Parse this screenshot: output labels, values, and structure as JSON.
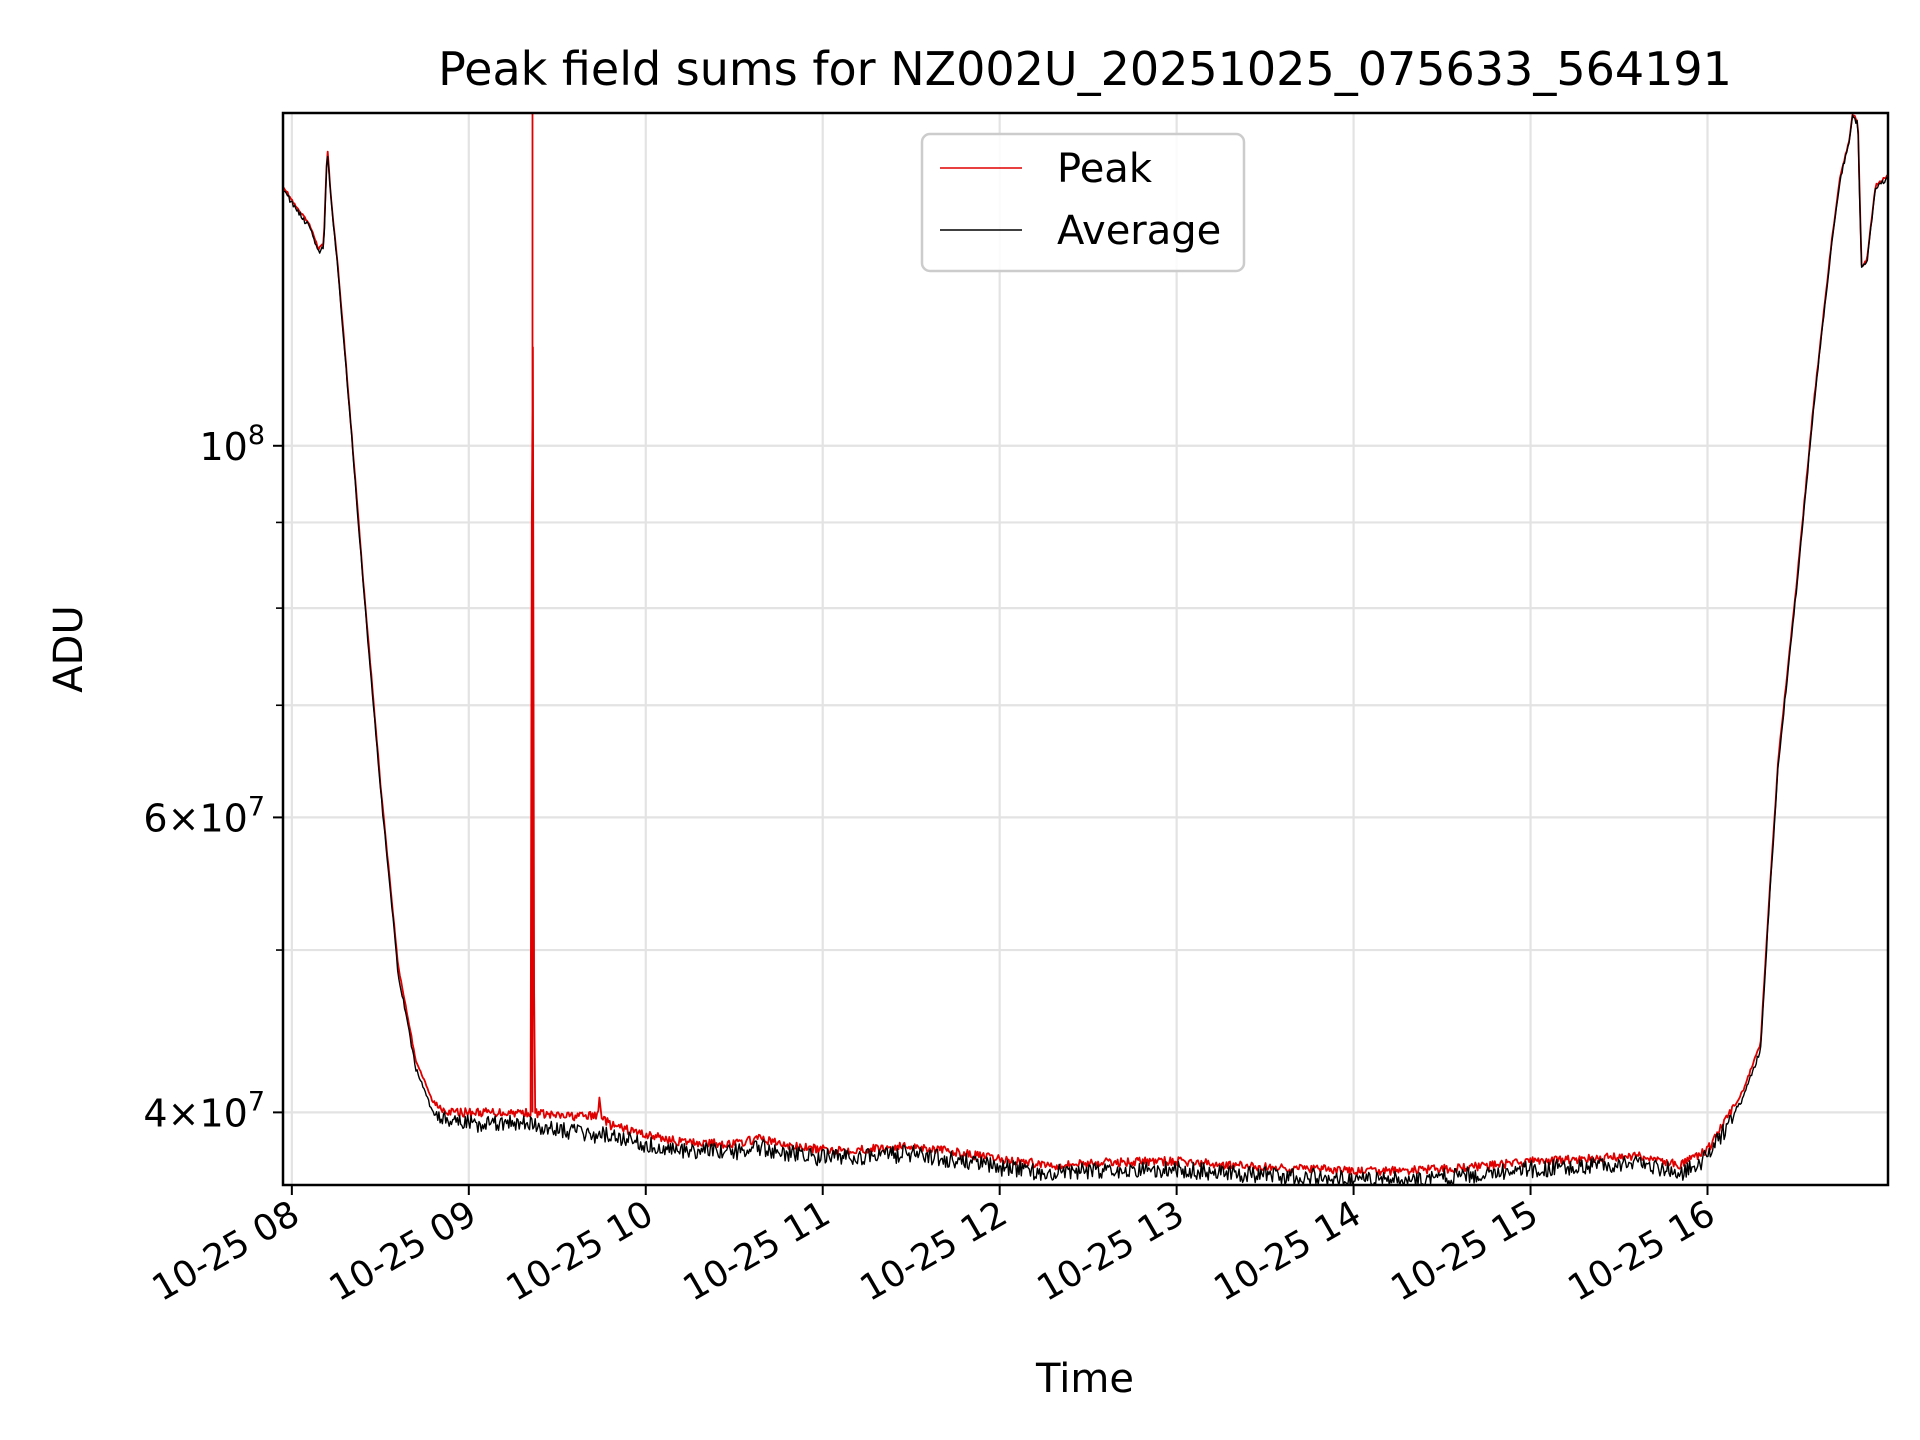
{
  "chart_data": {
    "type": "line",
    "title": "Peak field sums for NZ002U_20251025_075633_564191",
    "xlabel": "Time",
    "ylabel": "ADU",
    "y_scale": "log",
    "ylim": [
      36200000,
      158000000
    ],
    "xlim_hours": [
      7.95,
      17.02
    ],
    "grid": true,
    "legend_position": "upper center",
    "x_ticks": [
      {
        "value": 8,
        "label": "10-25 08"
      },
      {
        "value": 9,
        "label": "10-25 09"
      },
      {
        "value": 10,
        "label": "10-25 10"
      },
      {
        "value": 11,
        "label": "10-25 11"
      },
      {
        "value": 12,
        "label": "10-25 12"
      },
      {
        "value": 13,
        "label": "10-25 13"
      },
      {
        "value": 14,
        "label": "10-25 14"
      },
      {
        "value": 15,
        "label": "10-25 15"
      },
      {
        "value": 16,
        "label": "10-25 16"
      }
    ],
    "y_major_ticks": [
      {
        "value": 40000000,
        "mantissa": "4",
        "exp": "7"
      },
      {
        "value": 60000000,
        "mantissa": "6",
        "exp": "7"
      },
      {
        "value": 100000000,
        "mantissa": "",
        "exp": "8"
      }
    ],
    "y_minor_ticks": [
      50000000,
      70000000,
      80000000,
      90000000
    ],
    "series": [
      {
        "name": "Peak",
        "color": "#e00000",
        "x_hours": [
          7.95,
          8.02,
          8.09,
          8.12,
          8.15,
          8.18,
          8.2,
          8.22,
          8.26,
          8.3,
          8.35,
          8.4,
          8.5,
          8.6,
          8.7,
          8.8,
          8.9,
          9.0,
          9.2,
          9.35,
          9.36,
          9.37,
          9.5,
          9.73,
          9.74,
          9.75,
          9.8,
          10.0,
          10.2,
          10.5,
          10.65,
          10.8,
          11.0,
          11.2,
          11.5,
          11.8,
          12.0,
          12.3,
          12.5,
          12.8,
          13.0,
          13.3,
          13.5,
          13.8,
          14.0,
          14.2,
          14.5,
          14.8,
          15.0,
          15.3,
          15.6,
          15.85,
          16.0,
          16.1,
          16.2,
          16.3,
          16.35,
          16.4,
          16.5,
          16.6,
          16.7,
          16.75,
          16.8,
          16.82,
          16.85,
          16.87,
          16.9,
          16.95,
          17.02
        ],
        "y": [
          143000000,
          139000000,
          136000000,
          134000000,
          131000000,
          132000000,
          151000000,
          141000000,
          128000000,
          114000000,
          98000000,
          84000000,
          63000000,
          49000000,
          43000000,
          40500000,
          40000000,
          40000000,
          40000000,
          40000000,
          158000000,
          40000000,
          39800000,
          39800000,
          41000000,
          39800000,
          39300000,
          38800000,
          38400000,
          38300000,
          38600000,
          38200000,
          38000000,
          38000000,
          38200000,
          37800000,
          37500000,
          37200000,
          37300000,
          37400000,
          37400000,
          37200000,
          37100000,
          37000000,
          36900000,
          36900000,
          37000000,
          37200000,
          37400000,
          37500000,
          37700000,
          37200000,
          38000000,
          39500000,
          41200000,
          44000000,
          54000000,
          65000000,
          82000000,
          106000000,
          132000000,
          145000000,
          152000000,
          158000000,
          156000000,
          128000000,
          129000000,
          143000000,
          145000000
        ],
        "noise_amplitude": 0.006
      },
      {
        "name": "Average",
        "color": "#000000",
        "x_hours": [
          7.95,
          8.02,
          8.09,
          8.12,
          8.15,
          8.18,
          8.2,
          8.22,
          8.26,
          8.3,
          8.35,
          8.4,
          8.5,
          8.6,
          8.7,
          8.8,
          8.9,
          9.0,
          9.2,
          9.35,
          9.5,
          9.8,
          10.0,
          10.2,
          10.5,
          10.65,
          10.8,
          11.0,
          11.2,
          11.5,
          11.8,
          12.0,
          12.3,
          12.5,
          12.8,
          13.0,
          13.3,
          13.5,
          13.8,
          14.0,
          14.2,
          14.5,
          14.8,
          15.0,
          15.3,
          15.6,
          15.85,
          16.0,
          16.1,
          16.2,
          16.3,
          16.35,
          16.4,
          16.5,
          16.6,
          16.7,
          16.75,
          16.8,
          16.82,
          16.85,
          16.87,
          16.9,
          16.95,
          17.02
        ],
        "y": [
          142500000,
          138500000,
          135500000,
          133500000,
          130500000,
          131500000,
          150500000,
          140500000,
          127500000,
          113500000,
          97500000,
          83500000,
          62500000,
          48500000,
          42500000,
          39900000,
          39400000,
          39400000,
          39400000,
          39300000,
          39100000,
          38700000,
          38300000,
          38000000,
          37900000,
          38100000,
          37800000,
          37600000,
          37600000,
          37800000,
          37400000,
          37100000,
          36800000,
          36900000,
          37000000,
          37000000,
          36800000,
          36700000,
          36600000,
          36500000,
          36500000,
          36600000,
          36800000,
          37000000,
          37100000,
          37300000,
          36800000,
          37600000,
          39100000,
          40800000,
          43600000,
          53500000,
          64500000,
          81500000,
          105500000,
          131500000,
          144500000,
          151500000,
          157500000,
          155500000,
          127500000,
          128500000,
          142500000,
          144500000
        ],
        "noise_amplitude": 0.012
      }
    ]
  }
}
